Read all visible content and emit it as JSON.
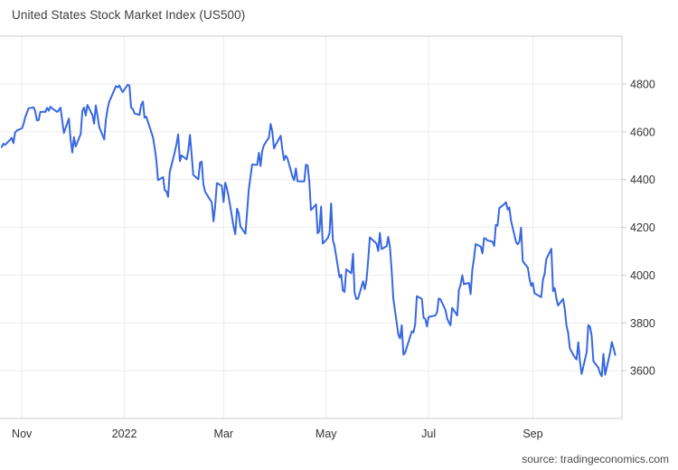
{
  "header": {
    "title": "United States Stock Market Index (US500)"
  },
  "footer": {
    "source": "source: tradingeconomics.com"
  },
  "colors": {
    "line": "#3767e1",
    "grid": "#ebebeb",
    "border": "#cccccc",
    "text": "#333333"
  },
  "chart_data": {
    "type": "line",
    "title": "United States Stock Market Index (US500)",
    "xlabel": "",
    "ylabel": "",
    "grid": true,
    "legend_position": "none",
    "y_range": [
      3400,
      5000
    ],
    "y_ticks": [
      4800,
      4600,
      4400,
      4200,
      4000,
      3800,
      3600
    ],
    "x_range": [
      "2021-10-19",
      "2022-10-24"
    ],
    "x_ticks": [
      {
        "label": "Nov",
        "date": "2021-11-01"
      },
      {
        "label": "2022",
        "date": "2022-01-01"
      },
      {
        "label": "Mar",
        "date": "2022-03-01"
      },
      {
        "label": "May",
        "date": "2022-05-01"
      },
      {
        "label": "Jul",
        "date": "2022-07-01"
      },
      {
        "label": "Sep",
        "date": "2022-09-01"
      }
    ],
    "series": [
      {
        "name": "US500",
        "color": "#3767e1",
        "points": [
          [
            "2021-10-20",
            4536
          ],
          [
            "2021-10-21",
            4550
          ],
          [
            "2021-10-22",
            4545
          ],
          [
            "2021-10-25",
            4566
          ],
          [
            "2021-10-26",
            4575
          ],
          [
            "2021-10-27",
            4552
          ],
          [
            "2021-10-28",
            4596
          ],
          [
            "2021-10-29",
            4605
          ],
          [
            "2021-11-01",
            4614
          ],
          [
            "2021-11-02",
            4631
          ],
          [
            "2021-11-03",
            4661
          ],
          [
            "2021-11-04",
            4680
          ],
          [
            "2021-11-05",
            4698
          ],
          [
            "2021-11-08",
            4702
          ],
          [
            "2021-11-09",
            4685
          ],
          [
            "2021-11-10",
            4647
          ],
          [
            "2021-11-11",
            4649
          ],
          [
            "2021-11-12",
            4683
          ],
          [
            "2021-11-15",
            4683
          ],
          [
            "2021-11-16",
            4700
          ],
          [
            "2021-11-17",
            4688
          ],
          [
            "2021-11-18",
            4705
          ],
          [
            "2021-11-19",
            4698
          ],
          [
            "2021-11-22",
            4683
          ],
          [
            "2021-11-23",
            4690
          ],
          [
            "2021-11-24",
            4701
          ],
          [
            "2021-11-26",
            4595
          ],
          [
            "2021-11-29",
            4655
          ],
          [
            "2021-11-30",
            4567
          ],
          [
            "2021-12-01",
            4513
          ],
          [
            "2021-12-02",
            4577
          ],
          [
            "2021-12-03",
            4538
          ],
          [
            "2021-12-06",
            4591
          ],
          [
            "2021-12-07",
            4687
          ],
          [
            "2021-12-08",
            4701
          ],
          [
            "2021-12-09",
            4668
          ],
          [
            "2021-12-10",
            4712
          ],
          [
            "2021-12-13",
            4669
          ],
          [
            "2021-12-14",
            4634
          ],
          [
            "2021-12-15",
            4710
          ],
          [
            "2021-12-16",
            4669
          ],
          [
            "2021-12-17",
            4621
          ],
          [
            "2021-12-20",
            4568
          ],
          [
            "2021-12-21",
            4649
          ],
          [
            "2021-12-22",
            4696
          ],
          [
            "2021-12-23",
            4726
          ],
          [
            "2021-12-27",
            4791
          ],
          [
            "2021-12-28",
            4786
          ],
          [
            "2021-12-29",
            4793
          ],
          [
            "2021-12-30",
            4778
          ],
          [
            "2021-12-31",
            4766
          ],
          [
            "2022-01-03",
            4797
          ],
          [
            "2022-01-04",
            4793
          ],
          [
            "2022-01-05",
            4701
          ],
          [
            "2022-01-06",
            4696
          ],
          [
            "2022-01-07",
            4677
          ],
          [
            "2022-01-10",
            4670
          ],
          [
            "2022-01-11",
            4713
          ],
          [
            "2022-01-12",
            4726
          ],
          [
            "2022-01-13",
            4659
          ],
          [
            "2022-01-14",
            4663
          ],
          [
            "2022-01-18",
            4577
          ],
          [
            "2022-01-19",
            4533
          ],
          [
            "2022-01-20",
            4483
          ],
          [
            "2022-01-21",
            4398
          ],
          [
            "2022-01-24",
            4410
          ],
          [
            "2022-01-25",
            4356
          ],
          [
            "2022-01-26",
            4350
          ],
          [
            "2022-01-27",
            4327
          ],
          [
            "2022-01-28",
            4432
          ],
          [
            "2022-01-31",
            4516
          ],
          [
            "2022-02-01",
            4547
          ],
          [
            "2022-02-02",
            4589
          ],
          [
            "2022-02-03",
            4477
          ],
          [
            "2022-02-04",
            4501
          ],
          [
            "2022-02-07",
            4484
          ],
          [
            "2022-02-08",
            4521
          ],
          [
            "2022-02-09",
            4587
          ],
          [
            "2022-02-10",
            4504
          ],
          [
            "2022-02-11",
            4419
          ],
          [
            "2022-02-14",
            4401
          ],
          [
            "2022-02-15",
            4471
          ],
          [
            "2022-02-16",
            4475
          ],
          [
            "2022-02-17",
            4380
          ],
          [
            "2022-02-18",
            4349
          ],
          [
            "2022-02-22",
            4304
          ],
          [
            "2022-02-23",
            4225
          ],
          [
            "2022-02-24",
            4288
          ],
          [
            "2022-02-25",
            4385
          ],
          [
            "2022-02-28",
            4374
          ],
          [
            "2022-03-01",
            4306
          ],
          [
            "2022-03-02",
            4387
          ],
          [
            "2022-03-03",
            4363
          ],
          [
            "2022-03-04",
            4329
          ],
          [
            "2022-03-07",
            4201
          ],
          [
            "2022-03-08",
            4171
          ],
          [
            "2022-03-09",
            4278
          ],
          [
            "2022-03-10",
            4260
          ],
          [
            "2022-03-11",
            4204
          ],
          [
            "2022-03-14",
            4173
          ],
          [
            "2022-03-15",
            4262
          ],
          [
            "2022-03-16",
            4358
          ],
          [
            "2022-03-17",
            4412
          ],
          [
            "2022-03-18",
            4463
          ],
          [
            "2022-03-21",
            4461
          ],
          [
            "2022-03-22",
            4512
          ],
          [
            "2022-03-23",
            4456
          ],
          [
            "2022-03-24",
            4520
          ],
          [
            "2022-03-25",
            4543
          ],
          [
            "2022-03-28",
            4576
          ],
          [
            "2022-03-29",
            4632
          ],
          [
            "2022-03-30",
            4602
          ],
          [
            "2022-03-31",
            4530
          ],
          [
            "2022-04-01",
            4546
          ],
          [
            "2022-04-04",
            4583
          ],
          [
            "2022-04-05",
            4525
          ],
          [
            "2022-04-06",
            4481
          ],
          [
            "2022-04-07",
            4500
          ],
          [
            "2022-04-08",
            4488
          ],
          [
            "2022-04-11",
            4413
          ],
          [
            "2022-04-12",
            4397
          ],
          [
            "2022-04-13",
            4447
          ],
          [
            "2022-04-14",
            4393
          ],
          [
            "2022-04-18",
            4392
          ],
          [
            "2022-04-19",
            4462
          ],
          [
            "2022-04-20",
            4459
          ],
          [
            "2022-04-21",
            4393
          ],
          [
            "2022-04-22",
            4272
          ],
          [
            "2022-04-25",
            4296
          ],
          [
            "2022-04-26",
            4175
          ],
          [
            "2022-04-27",
            4184
          ],
          [
            "2022-04-28",
            4287
          ],
          [
            "2022-04-29",
            4132
          ],
          [
            "2022-05-02",
            4155
          ],
          [
            "2022-05-03",
            4176
          ],
          [
            "2022-05-04",
            4300
          ],
          [
            "2022-05-05",
            4147
          ],
          [
            "2022-05-06",
            4123
          ],
          [
            "2022-05-09",
            3991
          ],
          [
            "2022-05-10",
            4001
          ],
          [
            "2022-05-11",
            3935
          ],
          [
            "2022-05-12",
            3930
          ],
          [
            "2022-05-13",
            4024
          ],
          [
            "2022-05-16",
            4008
          ],
          [
            "2022-05-17",
            4089
          ],
          [
            "2022-05-18",
            3924
          ],
          [
            "2022-05-19",
            3900
          ],
          [
            "2022-05-20",
            3901
          ],
          [
            "2022-05-23",
            3974
          ],
          [
            "2022-05-24",
            3941
          ],
          [
            "2022-05-25",
            3979
          ],
          [
            "2022-05-26",
            4058
          ],
          [
            "2022-05-27",
            4158
          ],
          [
            "2022-05-31",
            4132
          ],
          [
            "2022-06-01",
            4101
          ],
          [
            "2022-06-02",
            4177
          ],
          [
            "2022-06-03",
            4109
          ],
          [
            "2022-06-06",
            4121
          ],
          [
            "2022-06-07",
            4160
          ],
          [
            "2022-06-08",
            4116
          ],
          [
            "2022-06-09",
            4017
          ],
          [
            "2022-06-10",
            3901
          ],
          [
            "2022-06-13",
            3750
          ],
          [
            "2022-06-14",
            3735
          ],
          [
            "2022-06-15",
            3790
          ],
          [
            "2022-06-16",
            3667
          ],
          [
            "2022-06-17",
            3675
          ],
          [
            "2022-06-21",
            3765
          ],
          [
            "2022-06-22",
            3760
          ],
          [
            "2022-06-23",
            3796
          ],
          [
            "2022-06-24",
            3912
          ],
          [
            "2022-06-27",
            3900
          ],
          [
            "2022-06-28",
            3821
          ],
          [
            "2022-06-29",
            3818
          ],
          [
            "2022-06-30",
            3785
          ],
          [
            "2022-07-01",
            3825
          ],
          [
            "2022-07-05",
            3831
          ],
          [
            "2022-07-06",
            3845
          ],
          [
            "2022-07-07",
            3902
          ],
          [
            "2022-07-08",
            3899
          ],
          [
            "2022-07-11",
            3854
          ],
          [
            "2022-07-12",
            3819
          ],
          [
            "2022-07-13",
            3802
          ],
          [
            "2022-07-14",
            3790
          ],
          [
            "2022-07-15",
            3863
          ],
          [
            "2022-07-18",
            3831
          ],
          [
            "2022-07-19",
            3937
          ],
          [
            "2022-07-20",
            3960
          ],
          [
            "2022-07-21",
            3999
          ],
          [
            "2022-07-22",
            3962
          ],
          [
            "2022-07-25",
            3967
          ],
          [
            "2022-07-26",
            3921
          ],
          [
            "2022-07-27",
            4023
          ],
          [
            "2022-07-28",
            4072
          ],
          [
            "2022-07-29",
            4130
          ],
          [
            "2022-08-01",
            4119
          ],
          [
            "2022-08-02",
            4091
          ],
          [
            "2022-08-03",
            4155
          ],
          [
            "2022-08-04",
            4152
          ],
          [
            "2022-08-05",
            4145
          ],
          [
            "2022-08-08",
            4140
          ],
          [
            "2022-08-09",
            4122
          ],
          [
            "2022-08-10",
            4210
          ],
          [
            "2022-08-11",
            4207
          ],
          [
            "2022-08-12",
            4280
          ],
          [
            "2022-08-15",
            4297
          ],
          [
            "2022-08-16",
            4305
          ],
          [
            "2022-08-17",
            4274
          ],
          [
            "2022-08-18",
            4283
          ],
          [
            "2022-08-19",
            4228
          ],
          [
            "2022-08-22",
            4138
          ],
          [
            "2022-08-23",
            4129
          ],
          [
            "2022-08-24",
            4141
          ],
          [
            "2022-08-25",
            4199
          ],
          [
            "2022-08-26",
            4058
          ],
          [
            "2022-08-29",
            4031
          ],
          [
            "2022-08-30",
            3986
          ],
          [
            "2022-08-31",
            3955
          ],
          [
            "2022-09-01",
            3967
          ],
          [
            "2022-09-02",
            3924
          ],
          [
            "2022-09-06",
            3908
          ],
          [
            "2022-09-07",
            3980
          ],
          [
            "2022-09-08",
            4006
          ],
          [
            "2022-09-09",
            4067
          ],
          [
            "2022-09-12",
            4110
          ],
          [
            "2022-09-13",
            3933
          ],
          [
            "2022-09-14",
            3946
          ],
          [
            "2022-09-15",
            3901
          ],
          [
            "2022-09-16",
            3873
          ],
          [
            "2022-09-19",
            3900
          ],
          [
            "2022-09-20",
            3856
          ],
          [
            "2022-09-21",
            3790
          ],
          [
            "2022-09-22",
            3758
          ],
          [
            "2022-09-23",
            3693
          ],
          [
            "2022-09-26",
            3655
          ],
          [
            "2022-09-27",
            3647
          ],
          [
            "2022-09-28",
            3719
          ],
          [
            "2022-09-29",
            3640
          ],
          [
            "2022-09-30",
            3586
          ],
          [
            "2022-10-03",
            3678
          ],
          [
            "2022-10-04",
            3791
          ],
          [
            "2022-10-05",
            3783
          ],
          [
            "2022-10-06",
            3745
          ],
          [
            "2022-10-07",
            3640
          ],
          [
            "2022-10-10",
            3612
          ],
          [
            "2022-10-11",
            3589
          ],
          [
            "2022-10-12",
            3577
          ],
          [
            "2022-10-13",
            3670
          ],
          [
            "2022-10-14",
            3583
          ],
          [
            "2022-10-17",
            3678
          ],
          [
            "2022-10-18",
            3720
          ],
          [
            "2022-10-19",
            3695
          ],
          [
            "2022-10-20",
            3666
          ]
        ]
      }
    ]
  }
}
